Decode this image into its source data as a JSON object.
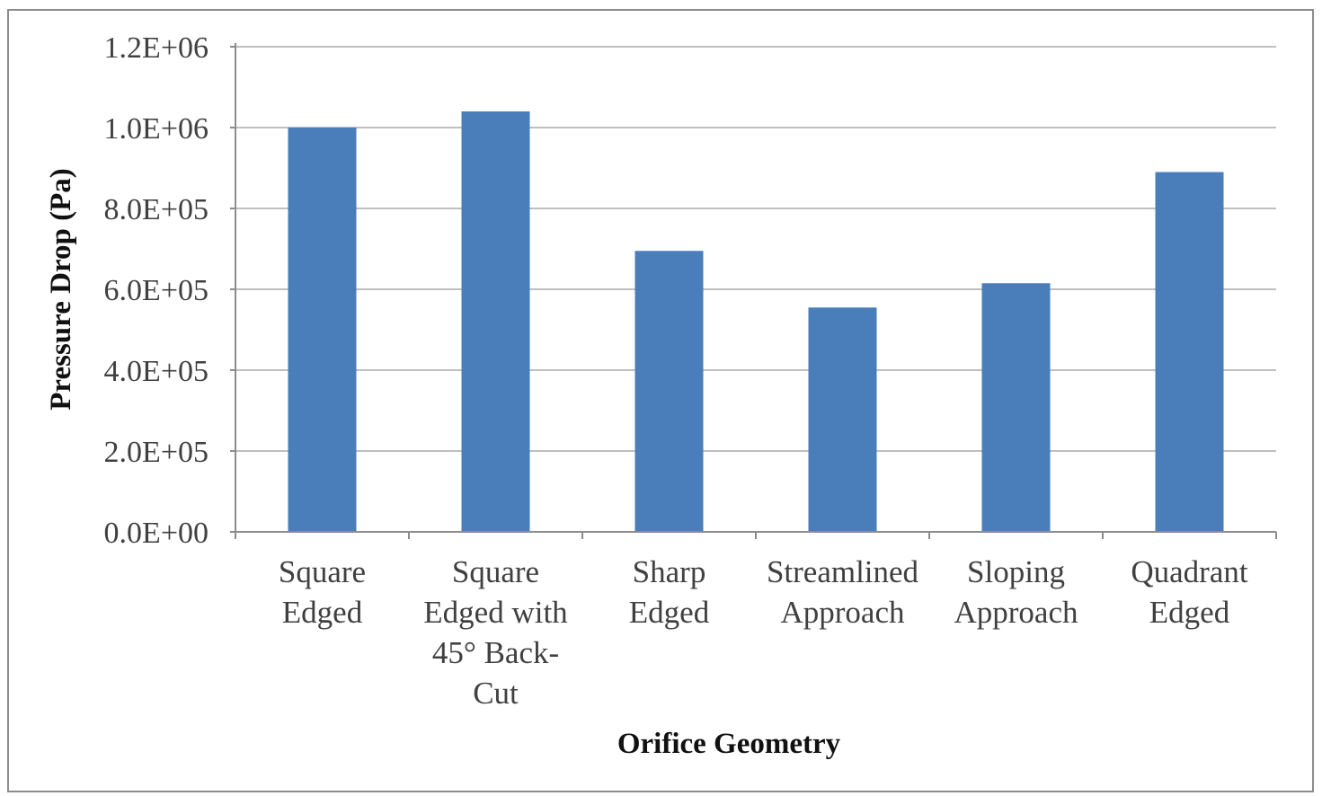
{
  "chart_data": {
    "type": "bar",
    "title": "",
    "xlabel": "Orifice Geometry",
    "ylabel": "Pressure Drop (Pa)",
    "ylim": [
      0,
      1200000
    ],
    "yticks": [
      0,
      200000,
      400000,
      600000,
      800000,
      1000000,
      1200000
    ],
    "ytick_labels": [
      "0.0E+00",
      "2.0E+05",
      "4.0E+05",
      "6.0E+05",
      "8.0E+05",
      "1.0E+06",
      "1.2E+06"
    ],
    "categories": [
      [
        "Square",
        "Edged"
      ],
      [
        "Square",
        "Edged with",
        "45° Back-",
        "Cut"
      ],
      [
        "Sharp",
        "Edged"
      ],
      [
        "Streamlined",
        "Approach"
      ],
      [
        "Sloping",
        "Approach"
      ],
      [
        "Quadrant",
        "Edged"
      ]
    ],
    "values": [
      1000000,
      1040000,
      695000,
      555000,
      615000,
      890000
    ],
    "bar_color": "#4a7ebb",
    "gridlines": true,
    "legend": "none"
  }
}
